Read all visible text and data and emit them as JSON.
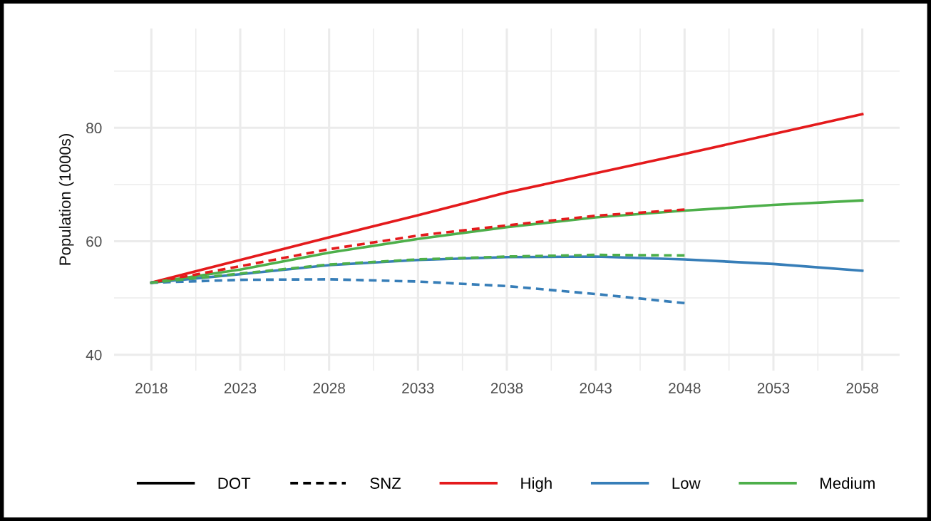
{
  "chart_data": {
    "type": "line",
    "ylabel": "Population (1000s)",
    "x": [
      2018,
      2023,
      2028,
      2033,
      2038,
      2043,
      2048,
      2053,
      2058
    ],
    "xlim": [
      2015.9,
      2060.1
    ],
    "xticks": [
      2018,
      2023,
      2028,
      2033,
      2038,
      2043,
      2048,
      2053,
      2058
    ],
    "ylim": [
      37.2,
      97.5
    ],
    "yticks": [
      40,
      60,
      80
    ],
    "grid": true,
    "legend": "bottom",
    "series": [
      {
        "name": "DOT",
        "color": "#000000",
        "line_style": "solid",
        "values": [
          null,
          null,
          null,
          null,
          null,
          null,
          null,
          null,
          null
        ]
      },
      {
        "name": "SNZ",
        "color": "#000000",
        "line_style": "dashed",
        "values": [
          null,
          null,
          null,
          null,
          null,
          null,
          null,
          null,
          null
        ]
      },
      {
        "name": "High",
        "color": "#e41a1c",
        "line_style": "solid",
        "values": [
          52.7,
          56.7,
          60.7,
          64.6,
          68.6,
          72.0,
          75.4,
          78.9,
          82.4
        ]
      },
      {
        "name": "Low",
        "color": "#377eb8",
        "line_style": "solid",
        "values": [
          52.7,
          54.2,
          55.8,
          56.7,
          57.2,
          57.3,
          56.8,
          56.0,
          54.8
        ]
      },
      {
        "name": "Medium",
        "color": "#4daf4a",
        "line_style": "solid",
        "values": [
          52.7,
          55.0,
          58.0,
          60.4,
          62.5,
          64.2,
          65.4,
          66.4,
          67.2
        ]
      },
      {
        "color": "#e41a1c",
        "line_style": "dashed",
        "x": [
          2018,
          2023,
          2028,
          2033,
          2038,
          2043,
          2048
        ],
        "values": [
          52.7,
          55.6,
          58.6,
          61.0,
          62.8,
          64.5,
          65.6
        ]
      },
      {
        "color": "#377eb8",
        "line_style": "dashed",
        "x": [
          2018,
          2023,
          2028,
          2033,
          2038,
          2043,
          2048
        ],
        "values": [
          52.7,
          53.2,
          53.3,
          52.9,
          52.1,
          50.7,
          49.1
        ]
      },
      {
        "color": "#4daf4a",
        "line_style": "dashed",
        "x": [
          2018,
          2023,
          2028,
          2033,
          2038,
          2043,
          2048
        ],
        "values": [
          52.7,
          54.3,
          55.9,
          56.8,
          57.3,
          57.6,
          57.5
        ]
      }
    ]
  }
}
